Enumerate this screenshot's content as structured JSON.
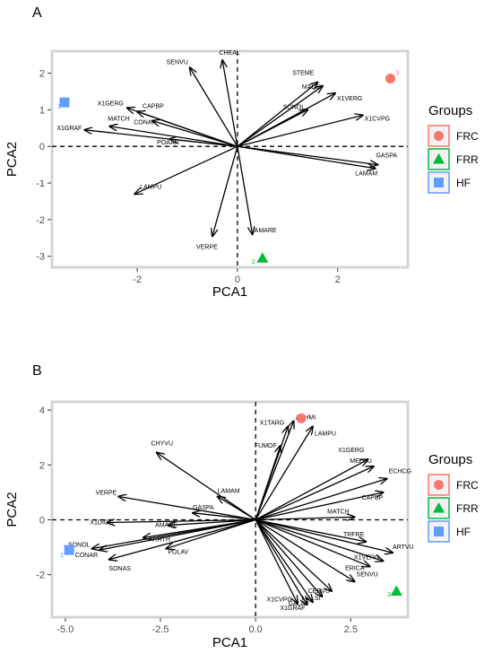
{
  "legend": {
    "title": "Groups",
    "entries": [
      {
        "name": "FRC",
        "shape": "circle",
        "color": "#F8766D"
      },
      {
        "name": "FRR",
        "shape": "triangle",
        "color": "#00BA38"
      },
      {
        "name": "HF",
        "shape": "square",
        "color": "#619CFF"
      }
    ]
  },
  "chart_data": [
    {
      "panel": "A",
      "type": "scatter",
      "subtype": "pca-biplot",
      "xlabel": "PCA1",
      "ylabel": "PCA2",
      "xlim": [
        -3.7,
        3.4
      ],
      "ylim": [
        -3.3,
        2.6
      ],
      "xticks": [
        -2,
        0,
        2
      ],
      "yticks": [
        -3,
        -2,
        -1,
        0,
        1,
        2
      ],
      "grid": false,
      "legend": "right",
      "points": [
        {
          "label": "3",
          "group": "FRC",
          "x": 3.05,
          "y": 1.85
        },
        {
          "label": "2",
          "group": "FRR",
          "x": 0.5,
          "y": -3.05
        },
        {
          "label": "1",
          "group": "HF",
          "x": -3.45,
          "y": 1.2
        }
      ],
      "loadings": [
        {
          "name": "CHEAL",
          "x": -0.3,
          "y": 2.35
        },
        {
          "name": "SENVU",
          "x": -0.95,
          "y": 2.15
        },
        {
          "name": "STEME",
          "x": 1.6,
          "y": 1.75
        },
        {
          "name": "MALSI",
          "x": 1.7,
          "y": 1.65
        },
        {
          "name": "SONOL",
          "x": 1.4,
          "y": 1.0
        },
        {
          "name": "X1VERG",
          "x": 1.95,
          "y": 1.45
        },
        {
          "name": "X1CVPG",
          "x": 2.5,
          "y": 0.85
        },
        {
          "name": "X1GERG",
          "x": -2.2,
          "y": 1.05
        },
        {
          "name": "CAPBP",
          "x": -2.0,
          "y": 0.95
        },
        {
          "name": "MATCH",
          "x": -2.55,
          "y": 0.55
        },
        {
          "name": "CONAR",
          "x": -1.7,
          "y": 0.7
        },
        {
          "name": "X1GRAF",
          "x": -3.05,
          "y": 0.45
        },
        {
          "name": "POAAN",
          "x": -1.35,
          "y": 0.2
        },
        {
          "name": "GASPA",
          "x": 2.8,
          "y": -0.5
        },
        {
          "name": "LAMAM",
          "x": 2.75,
          "y": -0.6
        },
        {
          "name": "LAMPU",
          "x": -2.05,
          "y": -1.3
        },
        {
          "name": "VERPE",
          "x": -0.5,
          "y": -2.45
        },
        {
          "name": "AMARE",
          "x": 0.3,
          "y": -2.4
        }
      ]
    },
    {
      "panel": "B",
      "type": "scatter",
      "subtype": "pca-biplot",
      "xlabel": "PCA1",
      "ylabel": "PCA2",
      "xlim": [
        -5.35,
        4.0
      ],
      "ylim": [
        -3.55,
        4.3
      ],
      "xticks": [
        -5.0,
        -2.5,
        0.0,
        2.5
      ],
      "xtick_labels": [
        "-5.0",
        "-2.5",
        "0.0",
        "2.5"
      ],
      "yticks": [
        -2,
        0,
        2,
        4
      ],
      "grid": false,
      "legend": "right",
      "points": [
        {
          "label": "3",
          "group": "FRC",
          "x": 1.2,
          "y": 3.7
        },
        {
          "label": "2",
          "group": "FRR",
          "x": 3.7,
          "y": -2.6
        },
        {
          "label": "1",
          "group": "HF",
          "x": -4.9,
          "y": -1.1
        }
      ],
      "loadings": [
        {
          "name": "ACHMI",
          "x": 1.0,
          "y": 3.6
        },
        {
          "name": "LAMPU",
          "x": 1.5,
          "y": 3.4
        },
        {
          "name": "X1TARG",
          "x": 0.85,
          "y": 3.4
        },
        {
          "name": "FUMOF",
          "x": 0.65,
          "y": 2.7
        },
        {
          "name": "X1GERG",
          "x": 2.95,
          "y": 2.2
        },
        {
          "name": "MEDLU",
          "x": 3.1,
          "y": 1.95
        },
        {
          "name": "ECHCG",
          "x": 3.45,
          "y": 1.5
        },
        {
          "name": "CAPBP",
          "x": 3.35,
          "y": 1.0
        },
        {
          "name": "MATCH",
          "x": 2.6,
          "y": 0.1
        },
        {
          "name": "TRFRE",
          "x": 2.9,
          "y": -0.8
        },
        {
          "name": "ARTVU",
          "x": 3.6,
          "y": -1.2
        },
        {
          "name": "X1VERG",
          "x": 3.35,
          "y": -1.5
        },
        {
          "name": "ERICA",
          "x": 3.0,
          "y": -1.7
        },
        {
          "name": "SENVU",
          "x": 2.6,
          "y": -2.25
        },
        {
          "name": "CERVU",
          "x": 2.0,
          "y": -2.6
        },
        {
          "name": "MALSI",
          "x": 1.75,
          "y": -2.8
        },
        {
          "name": "GALAP",
          "x": 1.5,
          "y": -3.0
        },
        {
          "name": "X1GRAF",
          "x": 1.35,
          "y": -3.1
        },
        {
          "name": "X1CVPG",
          "x": 1.1,
          "y": -3.05
        },
        {
          "name": "CHYVU",
          "x": -2.6,
          "y": 2.45
        },
        {
          "name": "LAMAM",
          "x": -1.0,
          "y": 0.85
        },
        {
          "name": "GASPA",
          "x": -1.65,
          "y": 0.25
        },
        {
          "name": "VERPE",
          "x": -3.6,
          "y": 0.85
        },
        {
          "name": "AMARE",
          "x": -2.3,
          "y": -0.2
        },
        {
          "name": "X1DIGG",
          "x": -3.9,
          "y": -0.1
        },
        {
          "name": "ARRTH",
          "x": -2.95,
          "y": -0.65
        },
        {
          "name": "SONOL",
          "x": -4.3,
          "y": -1.05
        },
        {
          "name": "POLAV",
          "x": -2.35,
          "y": -1.05
        },
        {
          "name": "CONAR",
          "x": -4.1,
          "y": -1.1
        },
        {
          "name": "SONAS",
          "x": -3.85,
          "y": -1.45
        }
      ]
    }
  ]
}
